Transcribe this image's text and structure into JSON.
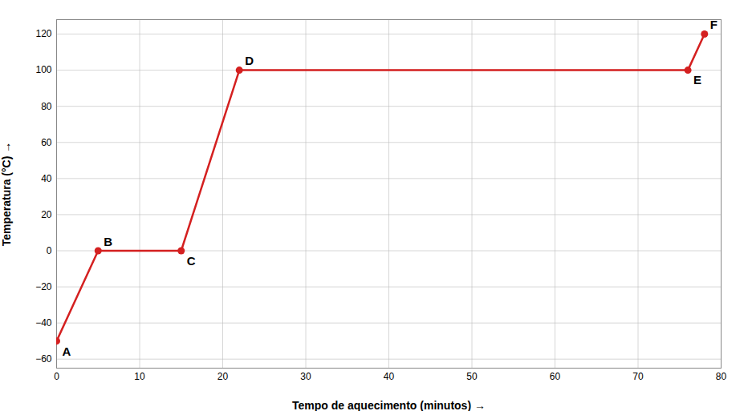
{
  "chart_data": {
    "type": "line",
    "x": [
      0,
      5,
      15,
      22,
      76,
      78
    ],
    "values": [
      -50,
      0,
      0,
      100,
      100,
      120
    ],
    "annotations": [
      "A",
      "B",
      "C",
      "D",
      "E",
      "F"
    ],
    "color": "#d42020",
    "marker": "circle",
    "line_style": "solid",
    "xlim": [
      0,
      80
    ],
    "ylim": [
      -65,
      128
    ],
    "xticks": [
      0,
      10,
      20,
      30,
      40,
      50,
      60,
      70,
      80
    ],
    "yticks": [
      -60,
      -40,
      -20,
      0,
      20,
      40,
      60,
      80,
      100,
      120
    ],
    "xlabel": "Tempo de aquecimento (minutos)",
    "ylabel": "Temperatura (°C)",
    "grid": true
  }
}
